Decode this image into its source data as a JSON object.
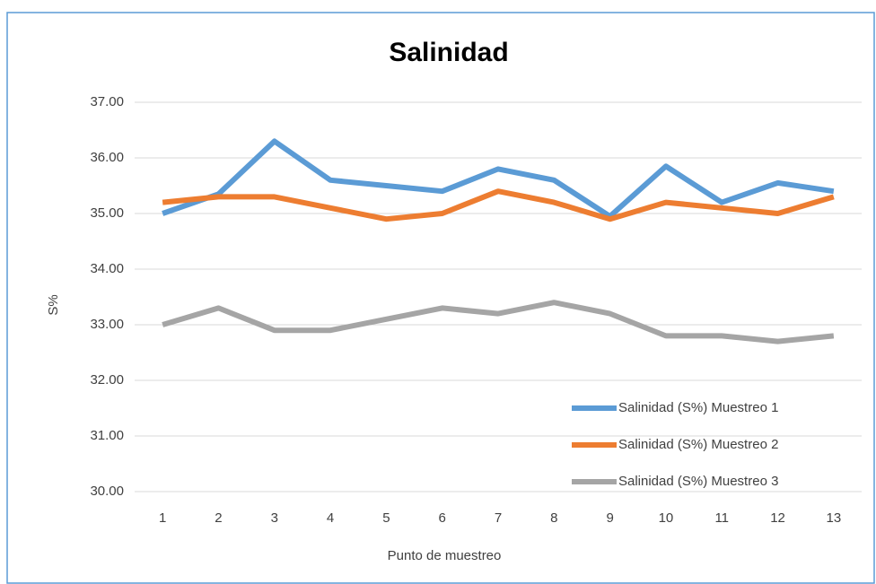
{
  "chart_data": {
    "type": "line",
    "title": "Salinidad",
    "x_label": "Punto de muestreo",
    "y_label": "S%",
    "categories": [
      "1",
      "2",
      "3",
      "4",
      "5",
      "6",
      "7",
      "8",
      "9",
      "10",
      "11",
      "12",
      "13"
    ],
    "series": [
      {
        "name": "Salinidad (S%) Muestreo 1",
        "color": "#5b9bd5",
        "values": [
          35.0,
          35.35,
          36.3,
          35.6,
          35.5,
          35.4,
          35.8,
          35.6,
          34.95,
          35.85,
          35.2,
          35.55,
          35.4
        ]
      },
      {
        "name": "Salinidad (S%) Muestreo 2",
        "color": "#ed7d31",
        "values": [
          35.2,
          35.3,
          35.3,
          35.1,
          34.9,
          35.0,
          35.4,
          35.2,
          34.9,
          35.2,
          35.1,
          35.0,
          35.3
        ]
      },
      {
        "name": "Salinidad (S%) Muestreo 3",
        "color": "#a5a5a5",
        "values": [
          33.0,
          33.3,
          32.9,
          32.9,
          33.1,
          33.3,
          33.2,
          33.4,
          33.2,
          32.8,
          32.8,
          32.7,
          32.8
        ]
      }
    ],
    "ylim": [
      30,
      37
    ],
    "yticks": [
      {
        "value": 30,
        "label": "30.00"
      },
      {
        "value": 31,
        "label": "31.00"
      },
      {
        "value": 32,
        "label": "32.00"
      },
      {
        "value": 33,
        "label": "33.00"
      },
      {
        "value": 34,
        "label": "34.00"
      },
      {
        "value": 35,
        "label": "35.00"
      },
      {
        "value": 36,
        "label": "36.00"
      },
      {
        "value": 37,
        "label": "37.00"
      }
    ],
    "grid": true,
    "legend": "lower right"
  }
}
